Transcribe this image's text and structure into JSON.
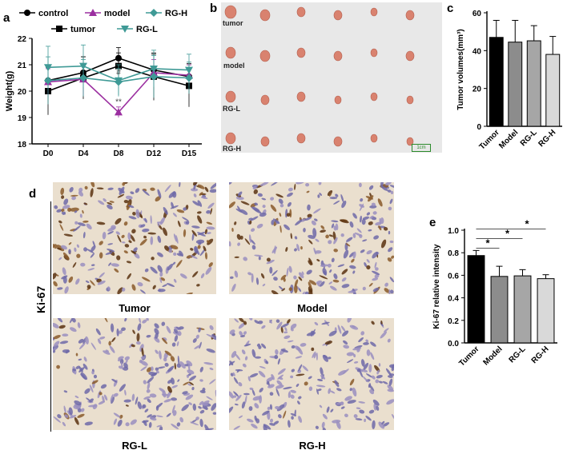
{
  "panels": {
    "a": {
      "letter": "a"
    },
    "b": {
      "letter": "b",
      "rows": [
        "tumor",
        "model",
        "RG-L",
        "RG-H"
      ],
      "scale_bar": "1cm"
    },
    "c": {
      "letter": "c"
    },
    "d": {
      "letter": "d",
      "stain": "Ki-67",
      "captions": [
        "Tumor",
        "Model",
        "RG-L",
        "RG-H"
      ]
    },
    "e": {
      "letter": "e"
    }
  },
  "colors": {
    "control": "#000000",
    "tumor": "#000000",
    "model": "#9b2fa0",
    "rg_h": "#3f9a96",
    "rg_l": "#3f9a96",
    "bar_tumor": "#000000",
    "bar_model": "#8c8c8c",
    "bar_rgl": "#a6a6a6",
    "bar_rgh": "#d9d9d9",
    "photo_bg": "#e8e8e8",
    "tissue_bg": "#eadfce"
  },
  "chart_data": [
    {
      "type": "line",
      "panel": "a",
      "x": [
        "D0",
        "D4",
        "D8",
        "D12",
        "D15"
      ],
      "ylabel": "Weight(g)",
      "ylim": [
        18,
        22
      ],
      "yticks": [
        18,
        19,
        20,
        21,
        22
      ],
      "legend_placement": "top",
      "series": [
        {
          "name": "control",
          "marker": "circle",
          "values": [
            20.4,
            20.7,
            21.25,
            20.8,
            20.55
          ],
          "err": [
            0.6,
            0.6,
            0.4,
            0.6,
            0.5
          ]
        },
        {
          "name": "tumor",
          "marker": "square",
          "values": [
            20.0,
            20.5,
            20.95,
            20.55,
            20.2
          ],
          "err": [
            0.9,
            0.8,
            0.5,
            0.9,
            0.8
          ]
        },
        {
          "name": "model",
          "marker": "triangle-up",
          "values": [
            20.35,
            20.45,
            19.2,
            20.7,
            20.6
          ],
          "err": [
            0.5,
            0.6,
            0.2,
            0.5,
            0.4
          ]
        },
        {
          "name": "RG-H",
          "marker": "diamond",
          "values": [
            20.4,
            20.5,
            20.35,
            20.55,
            20.5
          ],
          "err": [
            0.9,
            0.7,
            0.5,
            0.8,
            0.6
          ]
        },
        {
          "name": "RG-L",
          "marker": "triangle-down",
          "values": [
            20.9,
            20.95,
            20.4,
            20.85,
            20.8
          ],
          "err": [
            0.8,
            0.8,
            0.6,
            0.7,
            0.6
          ]
        }
      ],
      "annotations": [
        {
          "text": "#",
          "x": "D8",
          "y": 20.62
        },
        {
          "text": "**",
          "x": "D8",
          "y": 19.5
        }
      ]
    },
    {
      "type": "bar",
      "panel": "c",
      "categories": [
        "Tumor",
        "Model",
        "RG-L",
        "RG-H"
      ],
      "values": [
        47,
        44.5,
        45.2,
        38
      ],
      "err": [
        9,
        11.5,
        8,
        9.5
      ],
      "ylabel": "Tumor volumes(mm³)",
      "ylim": [
        0,
        60
      ],
      "yticks": [
        0,
        20,
        40,
        60
      ]
    },
    {
      "type": "bar",
      "panel": "e",
      "categories": [
        "Tumor",
        "Model",
        "RG-L",
        "RG-H"
      ],
      "values": [
        0.775,
        0.59,
        0.595,
        0.57
      ],
      "err": [
        0.045,
        0.09,
        0.055,
        0.035
      ],
      "ylabel": "Ki-67 relative intensity",
      "ylim": [
        0,
        1.0
      ],
      "yticks": [
        "0.0",
        "0.2",
        "0.4",
        "0.6",
        "0.8",
        "1.0"
      ],
      "significance": [
        {
          "from": "Tumor",
          "to": "Model",
          "text": "*"
        },
        {
          "from": "Tumor",
          "to": "RG-L",
          "text": "*"
        },
        {
          "from": "Tumor",
          "to": "RG-H",
          "text": "*"
        }
      ]
    }
  ]
}
